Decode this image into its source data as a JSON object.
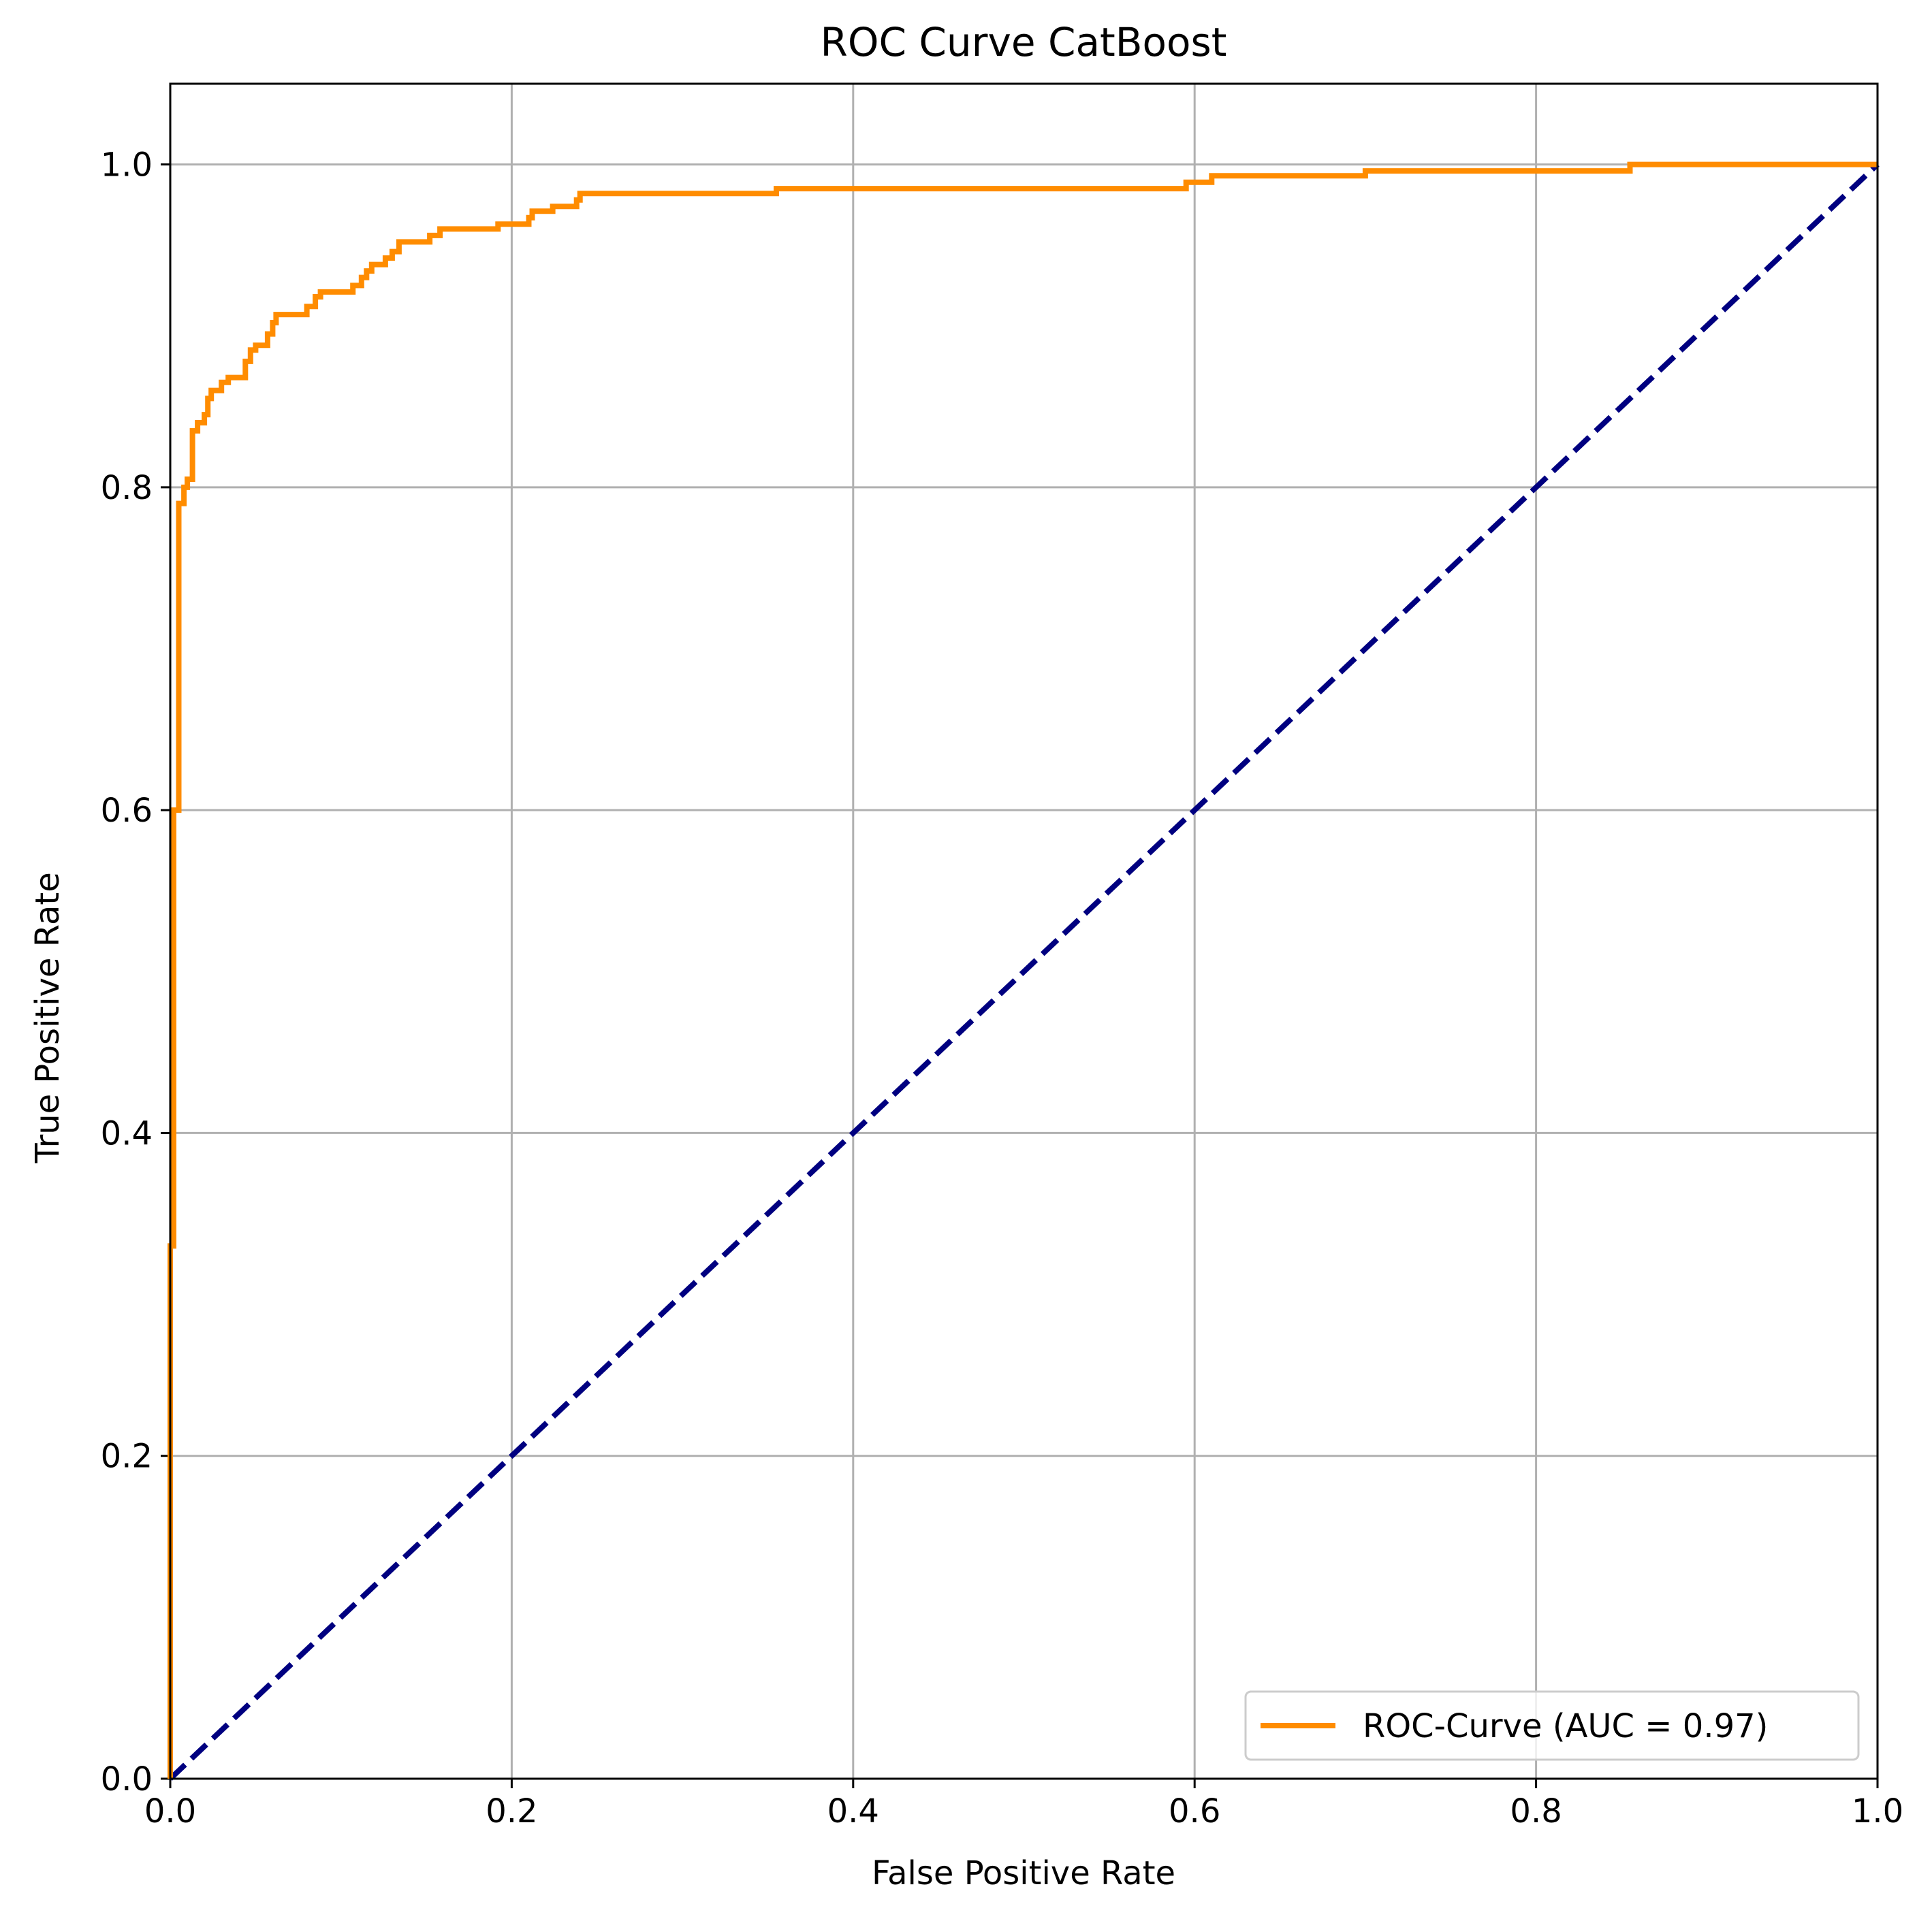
{
  "chart_data": {
    "type": "line",
    "title": "ROC Curve CatBoost",
    "xlabel": "False Positive Rate",
    "ylabel": "True Positive Rate",
    "xlim": [
      0.0,
      1.0
    ],
    "ylim": [
      0.0,
      1.05
    ],
    "xticks": [
      "0.0",
      "0.2",
      "0.4",
      "0.6",
      "0.8",
      "1.0"
    ],
    "yticks": [
      "0.0",
      "0.2",
      "0.4",
      "0.6",
      "0.8",
      "1.0"
    ],
    "xtick_values": [
      0.0,
      0.2,
      0.4,
      0.6,
      0.8,
      1.0
    ],
    "ytick_values": [
      0.0,
      0.2,
      0.4,
      0.6,
      0.8,
      1.0
    ],
    "grid": true,
    "legend_position": "lower right",
    "series": [
      {
        "name": "ROC-Curve (AUC = 0.97)",
        "color": "#ff8c00",
        "style": "solid",
        "points": [
          [
            0.0,
            0.0
          ],
          [
            0.0,
            0.33
          ],
          [
            0.002,
            0.33
          ],
          [
            0.002,
            0.6
          ],
          [
            0.005,
            0.6
          ],
          [
            0.005,
            0.79
          ],
          [
            0.008,
            0.79
          ],
          [
            0.008,
            0.8
          ],
          [
            0.01,
            0.8
          ],
          [
            0.01,
            0.805
          ],
          [
            0.013,
            0.805
          ],
          [
            0.013,
            0.81
          ],
          [
            0.013,
            0.835
          ],
          [
            0.016,
            0.835
          ],
          [
            0.016,
            0.84
          ],
          [
            0.02,
            0.84
          ],
          [
            0.02,
            0.845
          ],
          [
            0.022,
            0.845
          ],
          [
            0.022,
            0.855
          ],
          [
            0.024,
            0.855
          ],
          [
            0.024,
            0.86
          ],
          [
            0.03,
            0.86
          ],
          [
            0.03,
            0.865
          ],
          [
            0.034,
            0.865
          ],
          [
            0.034,
            0.868
          ],
          [
            0.044,
            0.868
          ],
          [
            0.044,
            0.878
          ],
          [
            0.047,
            0.878
          ],
          [
            0.047,
            0.885
          ],
          [
            0.05,
            0.885
          ],
          [
            0.05,
            0.888
          ],
          [
            0.057,
            0.888
          ],
          [
            0.057,
            0.895
          ],
          [
            0.06,
            0.895
          ],
          [
            0.06,
            0.902
          ],
          [
            0.062,
            0.902
          ],
          [
            0.062,
            0.907
          ],
          [
            0.08,
            0.907
          ],
          [
            0.08,
            0.912
          ],
          [
            0.085,
            0.912
          ],
          [
            0.085,
            0.918
          ],
          [
            0.088,
            0.918
          ],
          [
            0.088,
            0.921
          ],
          [
            0.107,
            0.921
          ],
          [
            0.107,
            0.925
          ],
          [
            0.112,
            0.925
          ],
          [
            0.112,
            0.93
          ],
          [
            0.115,
            0.93
          ],
          [
            0.115,
            0.934
          ],
          [
            0.118,
            0.934
          ],
          [
            0.118,
            0.938
          ],
          [
            0.126,
            0.938
          ],
          [
            0.126,
            0.942
          ],
          [
            0.13,
            0.942
          ],
          [
            0.13,
            0.946
          ],
          [
            0.134,
            0.946
          ],
          [
            0.134,
            0.952
          ],
          [
            0.152,
            0.952
          ],
          [
            0.152,
            0.956
          ],
          [
            0.158,
            0.956
          ],
          [
            0.158,
            0.96
          ],
          [
            0.192,
            0.96
          ],
          [
            0.192,
            0.963
          ],
          [
            0.21,
            0.963
          ],
          [
            0.21,
            0.967
          ],
          [
            0.212,
            0.967
          ],
          [
            0.212,
            0.971
          ],
          [
            0.224,
            0.971
          ],
          [
            0.224,
            0.974
          ],
          [
            0.238,
            0.974
          ],
          [
            0.238,
            0.978
          ],
          [
            0.24,
            0.978
          ],
          [
            0.24,
            0.982
          ],
          [
            0.355,
            0.982
          ],
          [
            0.355,
            0.985
          ],
          [
            0.595,
            0.985
          ],
          [
            0.595,
            0.989
          ],
          [
            0.61,
            0.989
          ],
          [
            0.61,
            0.993
          ],
          [
            0.7,
            0.993
          ],
          [
            0.7,
            0.996
          ],
          [
            0.855,
            0.996
          ],
          [
            0.855,
            1.0
          ],
          [
            1.0,
            1.0
          ]
        ]
      },
      {
        "name": "",
        "color": "#000080",
        "style": "dashed",
        "points": [
          [
            0.0,
            0.0
          ],
          [
            1.0,
            1.0
          ]
        ]
      }
    ],
    "legend": [
      {
        "label": "ROC-Curve (AUC = 0.97)",
        "color": "#ff8c00"
      }
    ]
  }
}
